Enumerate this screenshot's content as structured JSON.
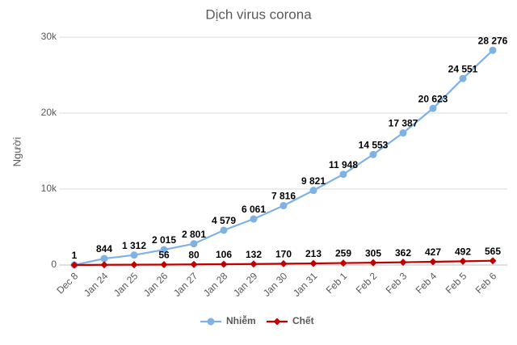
{
  "chart_data": {
    "type": "line",
    "title": "Dịch virus corona",
    "y_label": "Người",
    "categories": [
      "Dec 8",
      "Jan 24",
      "Jan 25",
      "Jan 26",
      "Jan 27",
      "Jan 28",
      "Jan 29",
      "Jan 30",
      "Jan 31",
      "Feb 1",
      "Feb 2",
      "Feb 3",
      "Feb 4",
      "Feb 5",
      "Feb 6"
    ],
    "series": [
      {
        "name": "Nhiễm",
        "color": "#7fb2e3",
        "marker": "circle",
        "values": [
          1,
          844,
          1312,
          2015,
          2801,
          4579,
          6061,
          7816,
          9821,
          11948,
          14553,
          17387,
          20623,
          24551,
          28276
        ],
        "value_labels": [
          "1",
          "844",
          "1 312",
          "2 015",
          "2 801",
          "4 579",
          "6 061",
          "7 816",
          "9 821",
          "11 948",
          "14 553",
          "17 387",
          "20 623",
          "24 551",
          "28 276"
        ]
      },
      {
        "name": "Chết",
        "color": "#c00000",
        "marker": "diamond",
        "values": [
          0,
          26,
          41,
          56,
          80,
          106,
          132,
          170,
          213,
          259,
          305,
          362,
          427,
          492,
          565
        ],
        "value_labels": [
          null,
          null,
          null,
          "56",
          "80",
          "106",
          "132",
          "170",
          "213",
          "259",
          "305",
          "362",
          "427",
          "492",
          "565"
        ]
      }
    ],
    "ylim": [
      0,
      30000
    ],
    "yticks": [
      0,
      {
        "value": 10000,
        "label": "10k"
      },
      {
        "value": 20000,
        "label": "20k"
      },
      {
        "value": 30000,
        "label": "30k"
      }
    ],
    "grid": true,
    "legend": "bottom"
  }
}
